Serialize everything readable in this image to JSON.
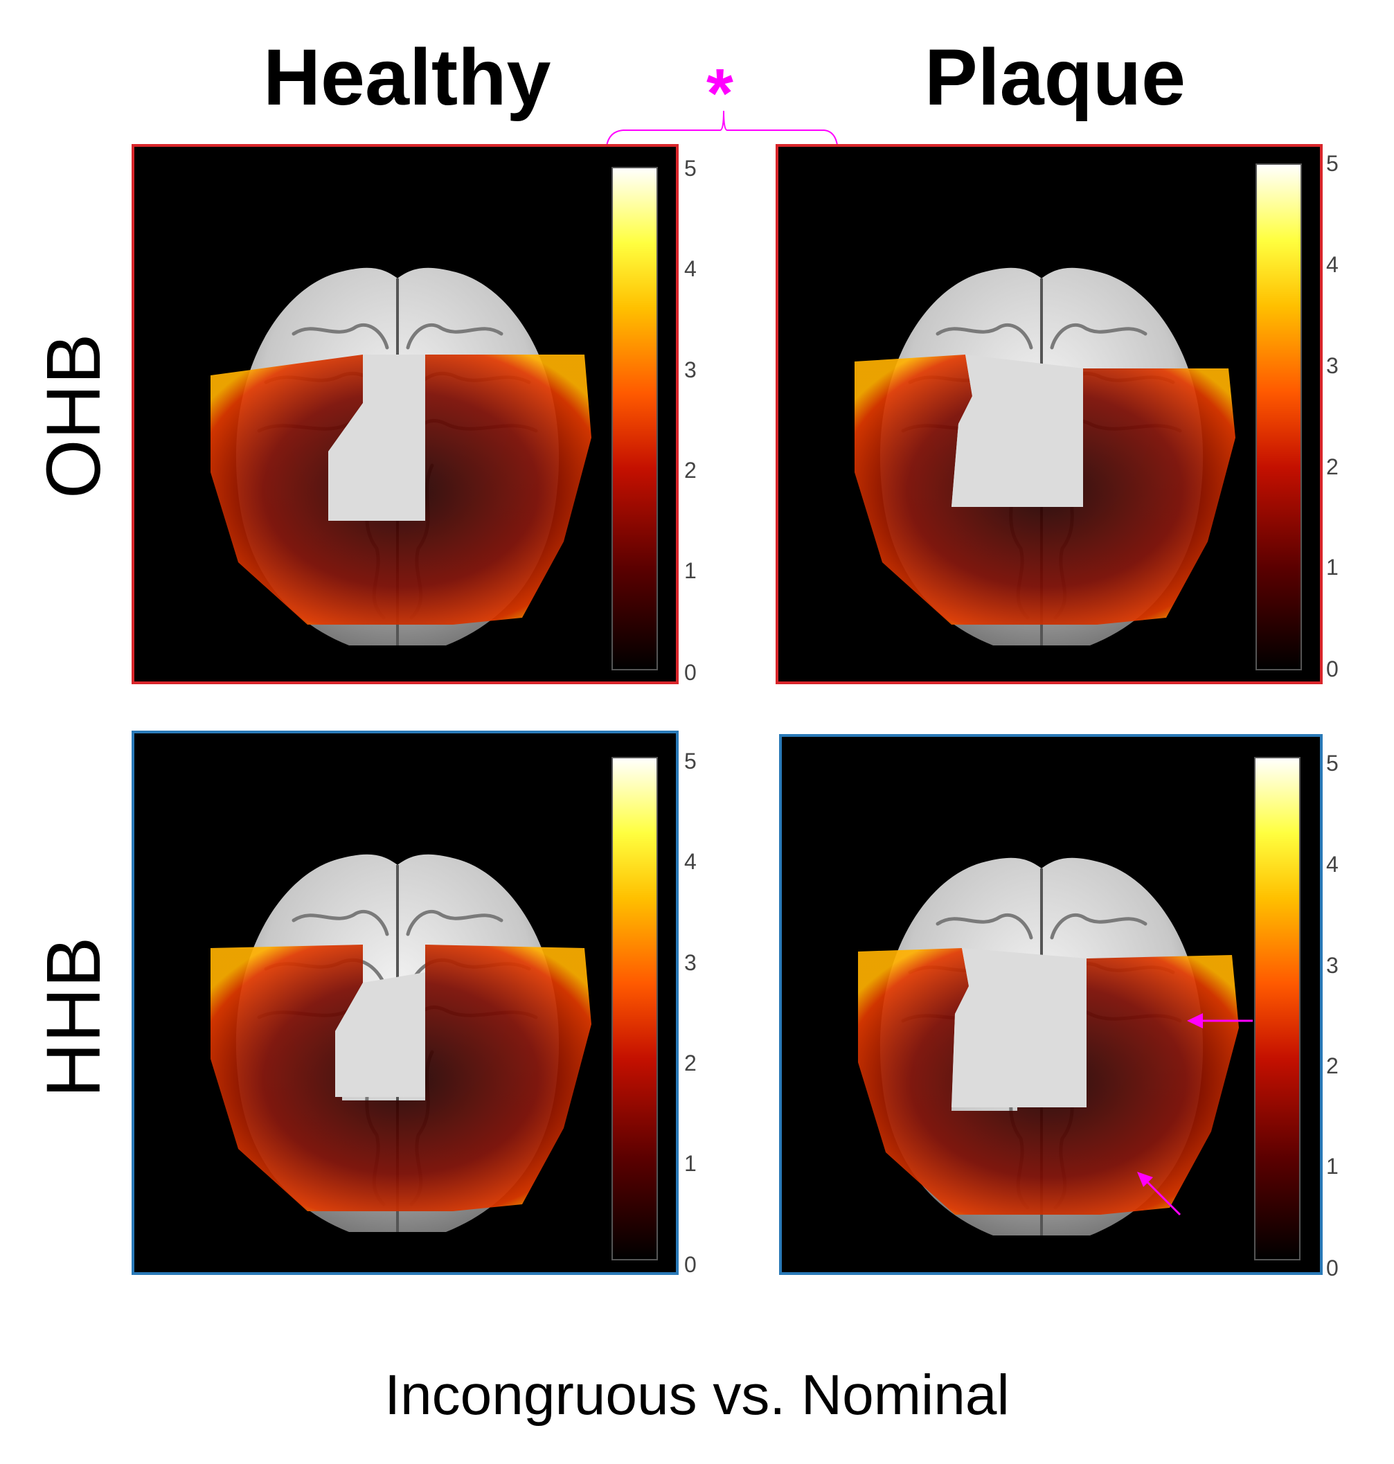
{
  "columns": [
    "Healthy",
    "Plaque"
  ],
  "rows": [
    "OHB",
    "HHB"
  ],
  "significance_marker": "*",
  "caption": "Incongruous vs. Nominal",
  "colorbar_ticks": [
    "0",
    "1",
    "2",
    "3",
    "4",
    "5"
  ],
  "colorbar_range": [
    0,
    5
  ],
  "colormap": [
    "#000000",
    "#5a0000",
    "#c41000",
    "#ff5a00",
    "#ffc000",
    "#ffff40",
    "#ffffff"
  ],
  "colors": {
    "ohb_frame": "#d9262b",
    "hhb_frame": "#2a7ab8",
    "marker": "#ff00ff",
    "panel_background": "#000000",
    "brain_surface": "#c8c8c8"
  },
  "panels": [
    {
      "row": "OHB",
      "column": "Healthy",
      "image": "brain-activation-map"
    },
    {
      "row": "OHB",
      "column": "Plaque",
      "image": "brain-activation-map"
    },
    {
      "row": "HHB",
      "column": "Healthy",
      "image": "brain-activation-map"
    },
    {
      "row": "HHB",
      "column": "Plaque",
      "image": "brain-activation-map",
      "annotations": [
        "arrow",
        "arrow"
      ]
    }
  ]
}
